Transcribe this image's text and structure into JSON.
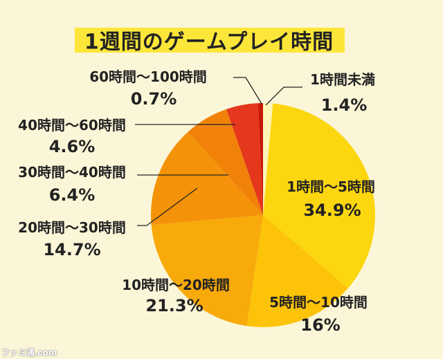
{
  "chart_data": {
    "type": "pie",
    "title": "1週間のゲームプレイ時間",
    "start": "top",
    "direction": "clockwise",
    "slices": [
      {
        "label": "1時間未満",
        "value": 1.4,
        "value_label": "1.4%",
        "color": "#fdf5b8"
      },
      {
        "label": "1時間〜5時間",
        "value": 34.9,
        "value_label": "34.9%",
        "color": "#fcd60f"
      },
      {
        "label": "5時間〜10時間",
        "value": 16,
        "value_label": "16%",
        "color": "#fcc309"
      },
      {
        "label": "10時間〜20時間",
        "value": 21.3,
        "value_label": "21.3%",
        "color": "#f8aa0a"
      },
      {
        "label": "20時間〜30時間",
        "value": 14.7,
        "value_label": "14.7%",
        "color": "#f49309"
      },
      {
        "label": "30時間〜40時間",
        "value": 6.4,
        "value_label": "6.4%",
        "color": "#f18209"
      },
      {
        "label": "40時間〜60時間",
        "value": 4.6,
        "value_label": "4.6%",
        "color": "#e5371c"
      },
      {
        "label": "60時間〜100時間",
        "value": 0.7,
        "value_label": "0.7%",
        "color": "#c8160b"
      }
    ]
  },
  "watermark": "ファミ通.com"
}
